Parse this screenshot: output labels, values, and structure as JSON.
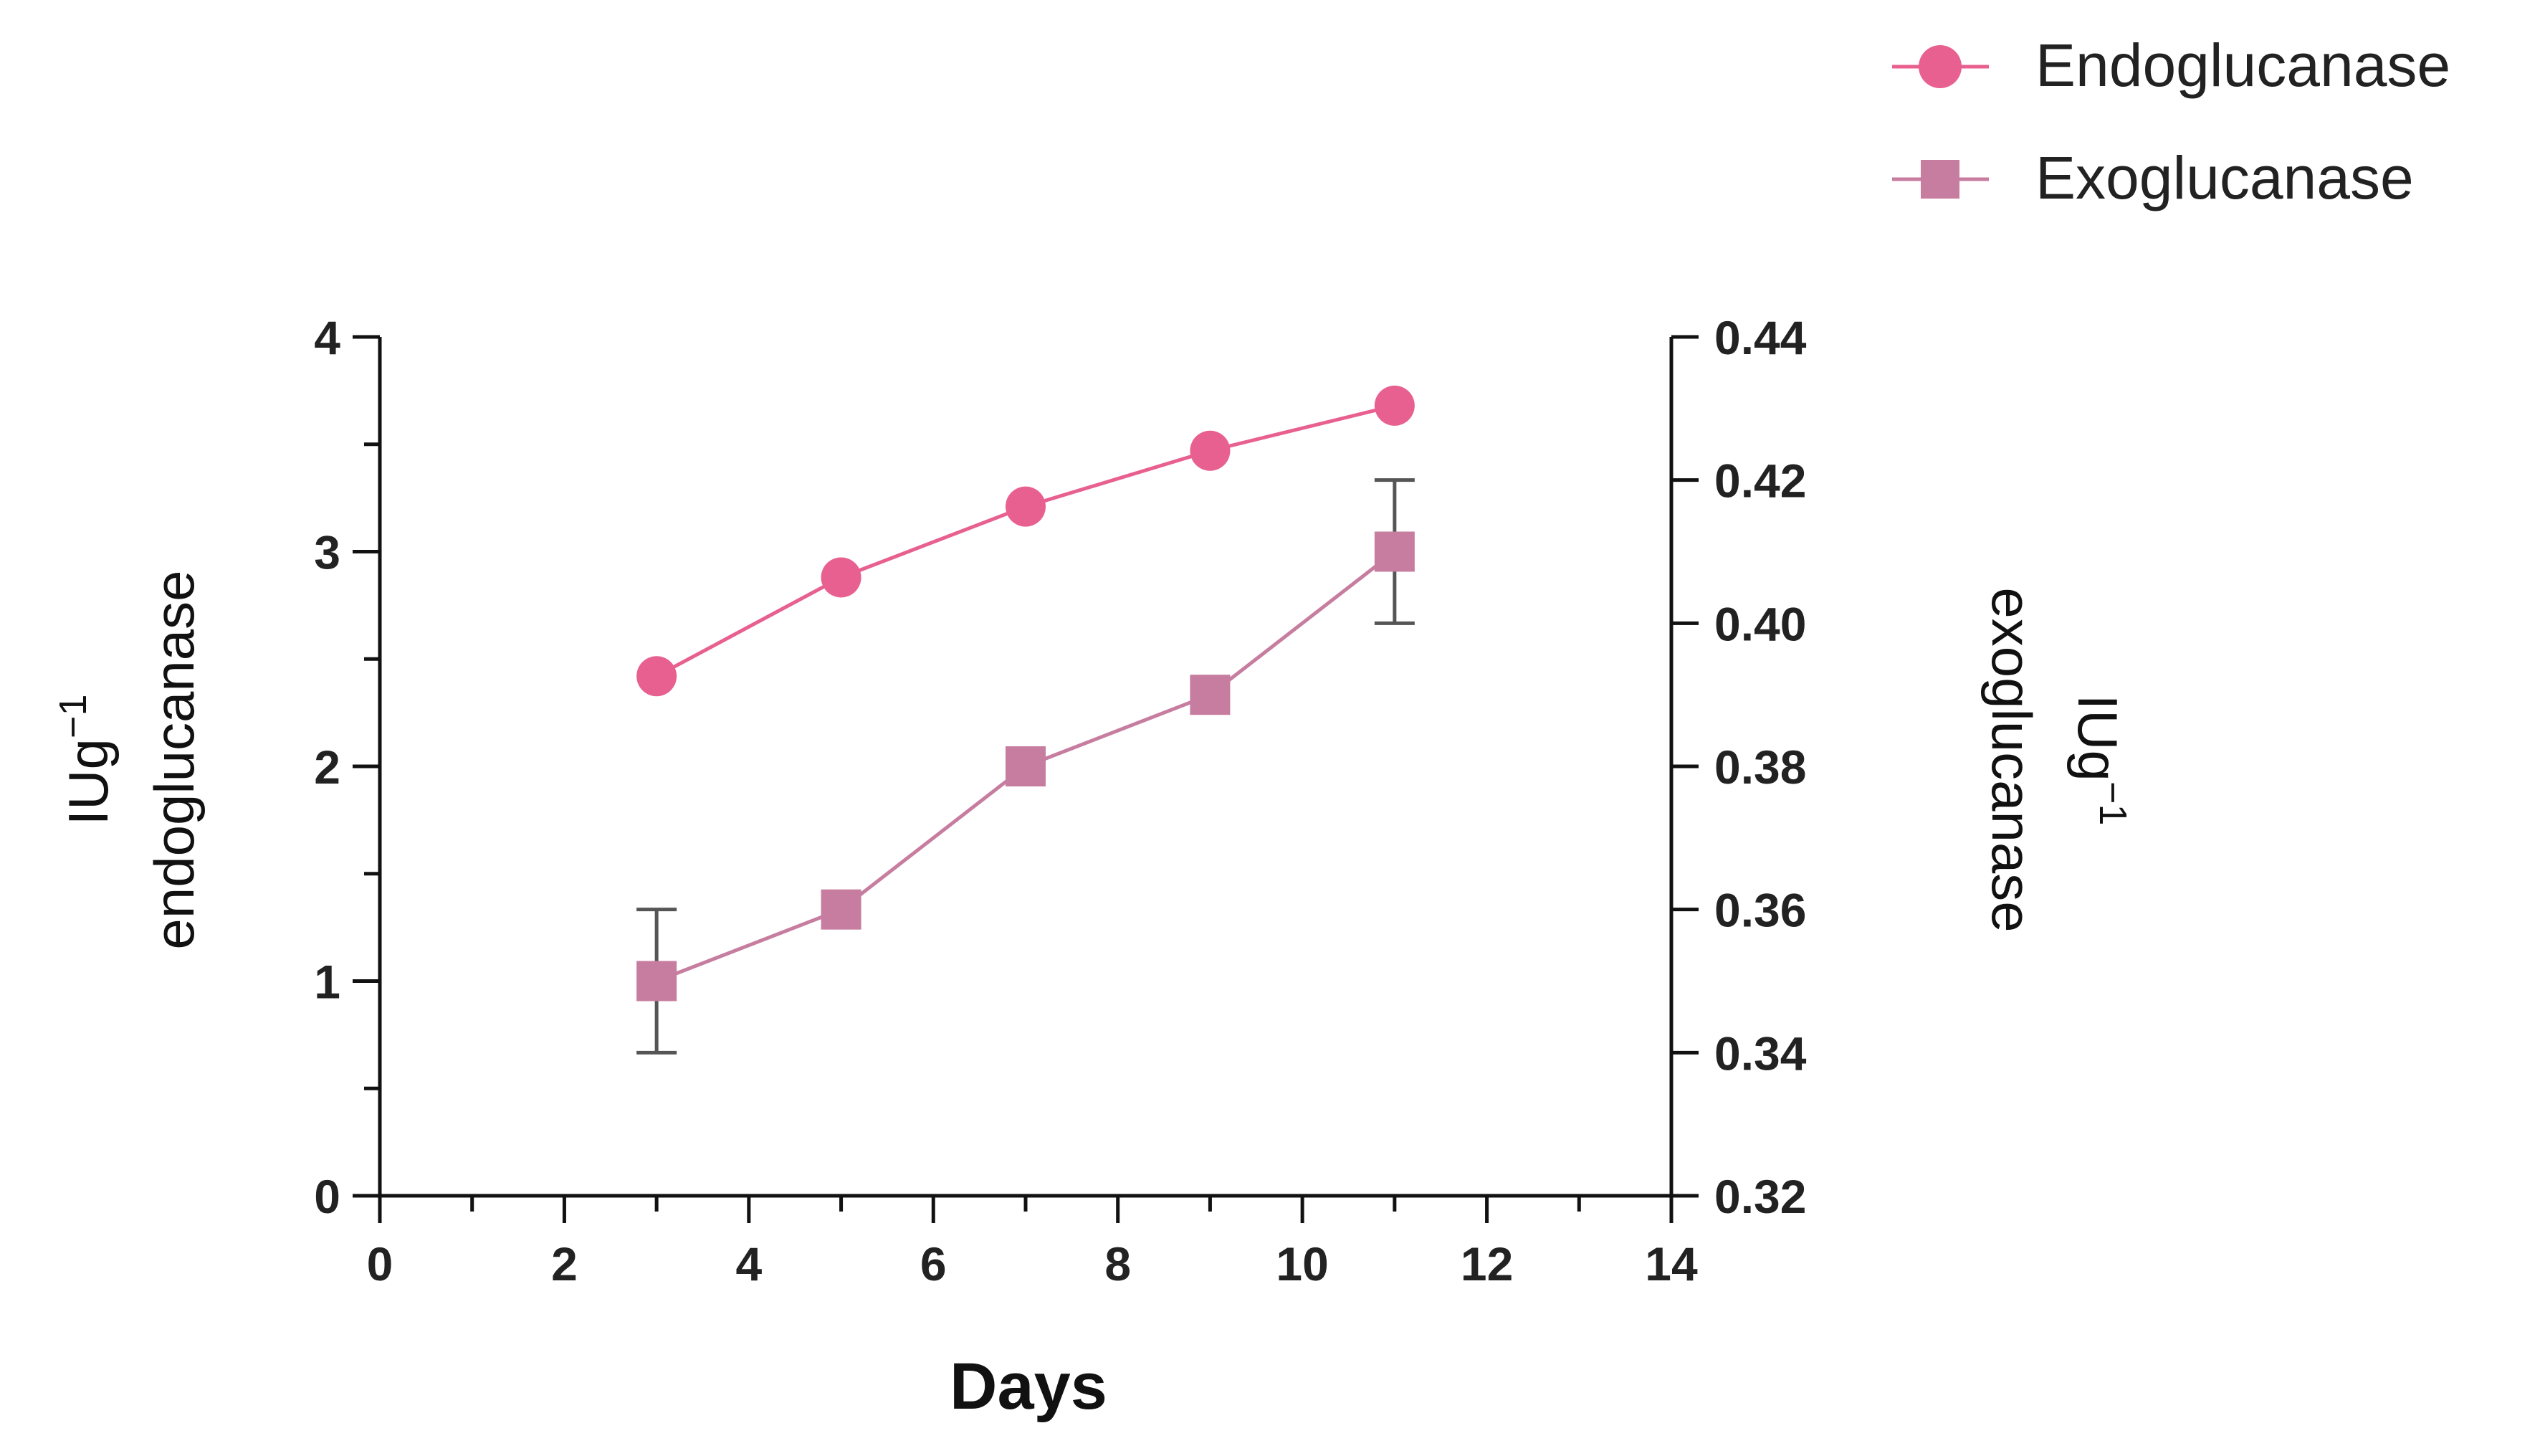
{
  "chart_data": {
    "type": "line",
    "x": [
      3,
      5,
      7,
      9,
      11
    ],
    "xlabel": "Days",
    "xlim": [
      0,
      14
    ],
    "xticks": [
      "0",
      "2",
      "4",
      "6",
      "8",
      "10",
      "12",
      "14"
    ],
    "y_left": {
      "label_line1": "IUg",
      "label_sup": "−1",
      "label_line2": "endoglucanase",
      "lim": [
        0,
        4
      ],
      "ticks": [
        "0",
        "1",
        "2",
        "3",
        "4"
      ]
    },
    "y_right": {
      "label_line1": "IUg",
      "label_sup": "−1",
      "label_line2": "exoglucanase",
      "lim": [
        0.32,
        0.44
      ],
      "ticks": [
        "0.32",
        "0.34",
        "0.36",
        "0.38",
        "0.40",
        "0.42",
        "0.44"
      ]
    },
    "series": [
      {
        "name": "Endoglucanase",
        "axis": "left",
        "marker": "circle",
        "color": "#e8608f",
        "values": [
          2.42,
          2.88,
          3.21,
          3.47,
          3.68
        ]
      },
      {
        "name": "Exoglucanase",
        "axis": "right",
        "marker": "square",
        "color": "#c77d9f",
        "values": [
          0.35,
          0.36,
          0.38,
          0.39,
          0.41
        ],
        "errors": [
          0.01,
          0,
          0,
          0,
          0.01
        ]
      }
    ],
    "legend_position": "top-right",
    "errorbar_color": "#555555"
  }
}
